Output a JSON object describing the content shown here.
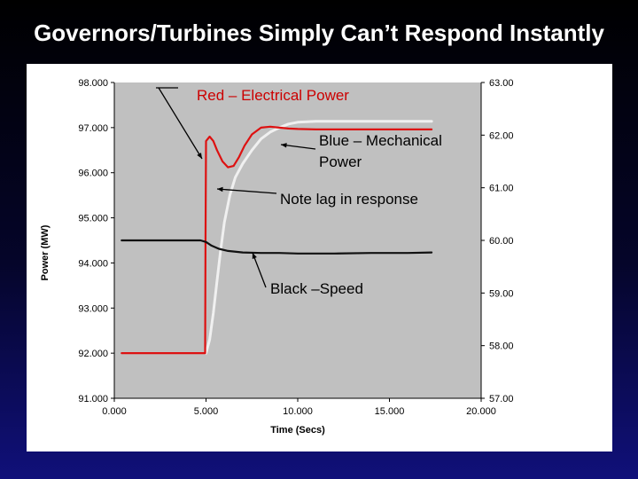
{
  "slide": {
    "title": "Governors/Turbines Simply Can’t Respond Instantly"
  },
  "chart_data": {
    "type": "line",
    "title": "",
    "xlabel": "Time (Secs)",
    "ylabel": "Power (MW)",
    "xlim": [
      0,
      20
    ],
    "ylim": [
      91,
      98
    ],
    "y2lim": [
      57,
      63
    ],
    "x_ticks": [
      "0.000",
      "5.000",
      "10.000",
      "15.000",
      "20.000"
    ],
    "y_ticks": [
      "91.000",
      "92.000",
      "93.000",
      "94.000",
      "95.000",
      "96.000",
      "97.000",
      "98.000"
    ],
    "y2_ticks": [
      "57.00",
      "58.00",
      "59.00",
      "60.00",
      "61.00",
      "62.00",
      "63.00"
    ],
    "grid": false,
    "plot_background": "#c0c0c0",
    "series": [
      {
        "key": "electrical",
        "axis": "left",
        "color": "#dd1111",
        "x": [
          0.4,
          4.8,
          4.95,
          4.97,
          5.0,
          5.2,
          5.4,
          5.6,
          5.9,
          6.2,
          6.5,
          6.8,
          7.1,
          7.5,
          8.0,
          8.5,
          9.0,
          9.5,
          10,
          11,
          12,
          13,
          14,
          15,
          16,
          17.3
        ],
        "y": [
          92.0,
          92.0,
          92.0,
          94.4,
          96.7,
          96.8,
          96.7,
          96.5,
          96.25,
          96.12,
          96.15,
          96.35,
          96.6,
          96.85,
          97.0,
          97.02,
          97.0,
          96.98,
          96.97,
          96.96,
          96.96,
          96.96,
          96.96,
          96.96,
          96.96,
          96.96
        ]
      },
      {
        "key": "mechanical",
        "axis": "left",
        "color": "#f0f0f0",
        "x": [
          5.0,
          5.2,
          5.4,
          5.6,
          5.8,
          6.0,
          6.3,
          6.6,
          7.0,
          7.5,
          8.0,
          8.5,
          9.0,
          9.5,
          10,
          11,
          12,
          13,
          14,
          15,
          16,
          17.3
        ],
        "y": [
          92.0,
          92.3,
          92.9,
          93.6,
          94.3,
          94.9,
          95.5,
          95.9,
          96.2,
          96.5,
          96.75,
          96.9,
          97.0,
          97.08,
          97.12,
          97.14,
          97.14,
          97.14,
          97.14,
          97.14,
          97.14,
          97.14
        ]
      },
      {
        "key": "speed",
        "axis": "right",
        "color": "#111111",
        "x": [
          0.4,
          2,
          4.7,
          5.0,
          5.3,
          5.7,
          6.2,
          7.0,
          8.0,
          9,
          10,
          12,
          14,
          15,
          16,
          17.3
        ],
        "y": [
          60.0,
          60.0,
          60.0,
          59.97,
          59.9,
          59.84,
          59.8,
          59.77,
          59.76,
          59.76,
          59.75,
          59.75,
          59.76,
          59.76,
          59.76,
          59.77
        ]
      }
    ],
    "annotations": [
      {
        "key": "red",
        "text": "Red – Electrical Power"
      },
      {
        "key": "blue1",
        "text": "Blue – Mechanical"
      },
      {
        "key": "blue2",
        "text": "Power"
      },
      {
        "key": "lag",
        "text": "Note lag in response"
      },
      {
        "key": "black",
        "text": "Black –Speed"
      }
    ]
  }
}
